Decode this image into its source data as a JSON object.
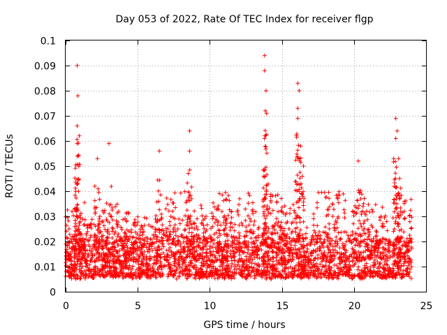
{
  "chart_data": {
    "type": "scatter",
    "title": "Day 053 of 2022, Rate Of TEC Index for receiver flgp",
    "xlabel": "GPS time / hours",
    "ylabel": "ROTI / TECUs",
    "xlim": [
      0,
      25
    ],
    "ylim": [
      0,
      0.1
    ],
    "xticks": [
      0,
      5,
      10,
      15,
      20,
      25
    ],
    "xtick_labels": [
      "0",
      "5",
      "10",
      "15",
      "20",
      "25"
    ],
    "yticks": [
      0,
      0.01,
      0.02,
      0.03,
      0.04,
      0.05,
      0.06,
      0.07,
      0.08,
      0.09,
      0.1
    ],
    "ytick_labels": [
      "0",
      "0.01",
      "0.02",
      "0.03",
      "0.04",
      "0.05",
      "0.06",
      "0.07",
      "0.08",
      "0.09",
      "0.1"
    ],
    "grid": true,
    "marker": "+",
    "color": "#ff0000",
    "data_range_x": [
      0,
      24
    ],
    "peaks": [
      {
        "x": 0.8,
        "y": 0.09
      },
      {
        "x": 0.85,
        "y": 0.078
      },
      {
        "x": 0.8,
        "y": 0.066
      },
      {
        "x": 0.8,
        "y": 0.059
      },
      {
        "x": 2.2,
        "y": 0.053
      },
      {
        "x": 3.0,
        "y": 0.059
      },
      {
        "x": 6.5,
        "y": 0.056
      },
      {
        "x": 8.6,
        "y": 0.064
      },
      {
        "x": 8.6,
        "y": 0.056
      },
      {
        "x": 13.8,
        "y": 0.094
      },
      {
        "x": 13.8,
        "y": 0.088
      },
      {
        "x": 13.9,
        "y": 0.08
      },
      {
        "x": 13.85,
        "y": 0.072
      },
      {
        "x": 13.8,
        "y": 0.061
      },
      {
        "x": 16.1,
        "y": 0.083
      },
      {
        "x": 16.2,
        "y": 0.08
      },
      {
        "x": 16.1,
        "y": 0.073
      },
      {
        "x": 16.1,
        "y": 0.069
      },
      {
        "x": 16.3,
        "y": 0.058
      },
      {
        "x": 16.5,
        "y": 0.05
      },
      {
        "x": 20.3,
        "y": 0.052
      },
      {
        "x": 22.9,
        "y": 0.069
      },
      {
        "x": 23.0,
        "y": 0.064
      },
      {
        "x": 22.9,
        "y": 0.061
      },
      {
        "x": 23.1,
        "y": 0.053
      }
    ]
  }
}
